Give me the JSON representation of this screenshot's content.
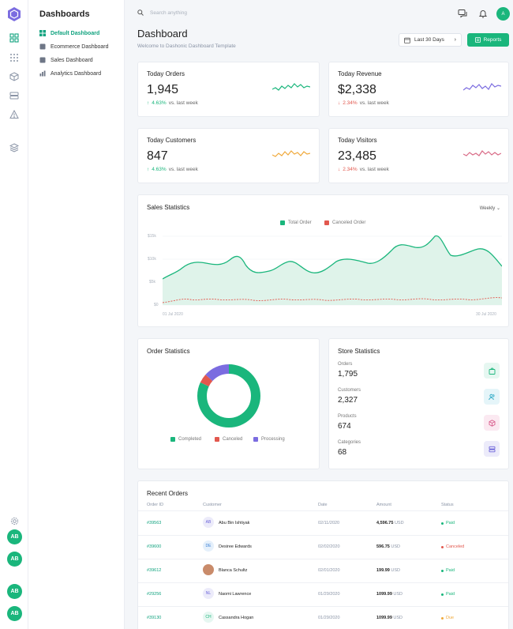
{
  "sidebar": {
    "title": "Dashboards",
    "items": [
      {
        "label": "Default Dashboard",
        "active": true
      },
      {
        "label": "Ecommerce Dashboard",
        "active": false
      },
      {
        "label": "Sales Dashboard",
        "active": false
      },
      {
        "label": "Analytics Dashboard",
        "active": false
      }
    ],
    "avatars": [
      "AB",
      "AB",
      "AB",
      "AB"
    ]
  },
  "topbar": {
    "search_placeholder": "Search anything",
    "user_initial": "A"
  },
  "page": {
    "title": "Dashboard",
    "subtitle": "Welcome to Dashonic Dashboard Template",
    "date_range": "Last 30 Days",
    "reports_label": "Reports"
  },
  "stats": [
    {
      "title": "Today Orders",
      "value": "1,945",
      "change": "4.63%",
      "direction": "up",
      "suffix": "vs. last week",
      "color": "#1ab67c"
    },
    {
      "title": "Today Revenue",
      "value": "$2,338",
      "change": "2.34%",
      "direction": "down",
      "suffix": "vs. last week",
      "color": "#7b6ce0"
    },
    {
      "title": "Today Customers",
      "value": "847",
      "change": "4.63%",
      "direction": "up",
      "suffix": "vs. last week",
      "color": "#f0a93b"
    },
    {
      "title": "Today Visitors",
      "value": "23,485",
      "change": "2.34%",
      "direction": "down",
      "suffix": "vs. last week",
      "color": "#d96b87"
    }
  ],
  "sales": {
    "title": "Sales Statistics",
    "period": "Weekly",
    "legend": [
      {
        "label": "Total Order",
        "color": "#1ab67c"
      },
      {
        "label": "Canceled Order",
        "color": "#e2584e"
      }
    ]
  },
  "order_stats": {
    "title": "Order Statistics",
    "legend": [
      {
        "label": "Completed",
        "color": "#1ab67c"
      },
      {
        "label": "Canceled",
        "color": "#e2584e"
      },
      {
        "label": "Processing",
        "color": "#7b6ce0"
      }
    ]
  },
  "store_stats": {
    "title": "Store Statistics",
    "items": [
      {
        "label": "Orders",
        "value": "1,795",
        "bg": "#e6f7f1",
        "fg": "#1ab67c"
      },
      {
        "label": "Customers",
        "value": "2,327",
        "bg": "#e5f5f9",
        "fg": "#25a6c4"
      },
      {
        "label": "Products",
        "value": "674",
        "bg": "#fbe9f1",
        "fg": "#d9608f"
      },
      {
        "label": "Categories",
        "value": "68",
        "bg": "#ecebfa",
        "fg": "#6b63d9"
      }
    ]
  },
  "recent_orders": {
    "title": "Recent Orders",
    "columns": [
      "Order ID",
      "Customer",
      "Date",
      "Amount",
      "Status"
    ],
    "rows": [
      {
        "id": "#39563",
        "initials": "AB",
        "customer": "Abu Bin Ishtiyak",
        "date": "02/11/2020",
        "amount": "4,596.75",
        "currency": "USD",
        "status": "Paid",
        "status_color": "#1ab67c",
        "av_bg": "#ecebfa",
        "av_fg": "#6b63d9"
      },
      {
        "id": "#39600",
        "initials": "DE",
        "customer": "Desiree Edwards",
        "date": "02/02/2020",
        "amount": "596.75",
        "currency": "USD",
        "status": "Canceled",
        "status_color": "#e2584e",
        "av_bg": "#e5f0fb",
        "av_fg": "#3a7fd5"
      },
      {
        "id": "#39612",
        "initials": "",
        "customer": "Blanca Schultz",
        "date": "02/01/2020",
        "amount": "199.99",
        "currency": "USD",
        "status": "Paid",
        "status_color": "#1ab67c",
        "av_bg": "#c98b6a",
        "av_fg": "#fff"
      },
      {
        "id": "#29256",
        "initials": "NL",
        "customer": "Naomi Lawrence",
        "date": "01/29/2020",
        "amount": "1099.99",
        "currency": "USD",
        "status": "Paid",
        "status_color": "#1ab67c",
        "av_bg": "#ecebfa",
        "av_fg": "#6b63d9"
      },
      {
        "id": "#39130",
        "initials": "CH",
        "customer": "Cassandra Hogan",
        "date": "01/29/2020",
        "amount": "1099.99",
        "currency": "USD",
        "status": "Due",
        "status_color": "#f0a93b",
        "av_bg": "#e6f7f1",
        "av_fg": "#1ab67c"
      }
    ]
  }
}
